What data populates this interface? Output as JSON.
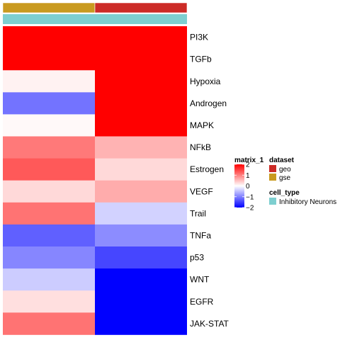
{
  "chart_data": {
    "type": "heatmap",
    "rows": [
      "PI3K",
      "TGFb",
      "Hypoxia",
      "Androgen",
      "MAPK",
      "NFkB",
      "Estrogen",
      "VEGF",
      "Trail",
      "TNFa",
      "p53",
      "WNT",
      "EGFR",
      "JAK-STAT"
    ],
    "columns": [
      "gse",
      "geo"
    ],
    "values": [
      [
        2.0,
        2.0
      ],
      [
        2.0,
        2.0
      ],
      [
        0.1,
        2.0
      ],
      [
        -1.1,
        2.0
      ],
      [
        0.05,
        2.0
      ],
      [
        1.05,
        0.6
      ],
      [
        1.3,
        0.3
      ],
      [
        0.3,
        0.65
      ],
      [
        1.1,
        -0.35
      ],
      [
        -1.25,
        -0.9
      ],
      [
        -0.95,
        -1.45
      ],
      [
        -0.4,
        -2.0
      ],
      [
        0.25,
        -2.0
      ],
      [
        1.1,
        -2.0
      ]
    ],
    "color_scale": {
      "domain": [
        -2,
        0,
        2
      ],
      "colors": [
        "#0000ff",
        "#ffffff",
        "#ff0000"
      ],
      "ticks": [
        2,
        1,
        0,
        -1,
        -2
      ],
      "tick_labels": [
        "2",
        "1",
        "0",
        "−1",
        "−2"
      ]
    },
    "annotations": {
      "dataset": {
        "title": "dataset",
        "values": [
          "gse",
          "geo"
        ],
        "legend": [
          {
            "label": "geo",
            "color": "#cc2b26"
          },
          {
            "label": "gse",
            "color": "#c99a1f"
          }
        ]
      },
      "cell_type": {
        "title": "cell_type",
        "values": [
          "Inhibitory Neurons",
          "Inhibitory Neurons"
        ],
        "legend": [
          {
            "label": "Inhibitory Neurons",
            "color": "#7ecfd0"
          }
        ]
      }
    },
    "legend_title": "matrix_1"
  }
}
